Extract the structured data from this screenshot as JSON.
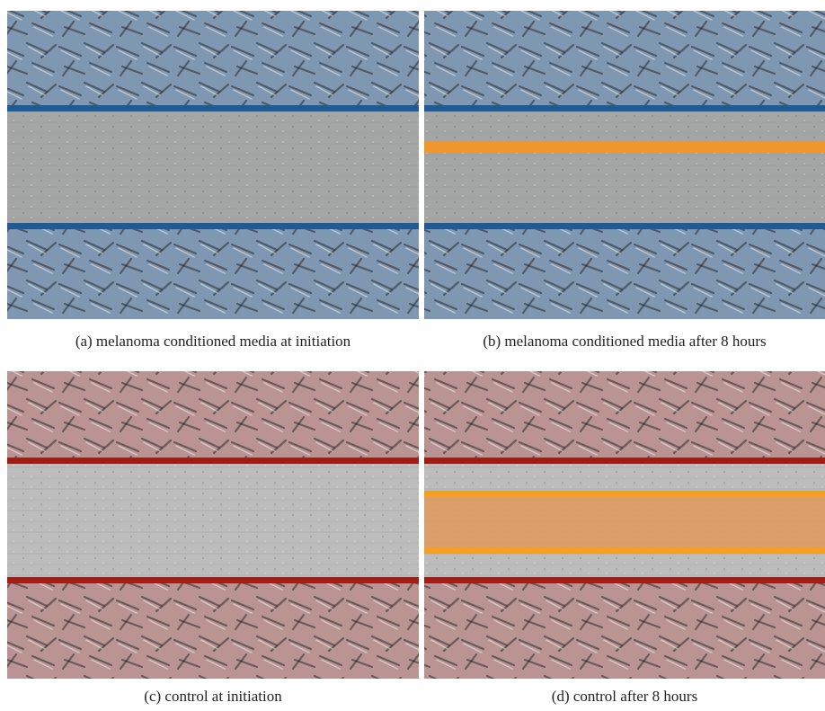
{
  "figure": {
    "panels": [
      {
        "caption": "(a)  melanoma conditioned media at initiation"
      },
      {
        "caption": "(b)  melanoma conditioned media after 8 hours"
      },
      {
        "caption": "(c)  control at initiation"
      },
      {
        "caption": "(d)  control after 8 hours"
      }
    ]
  }
}
